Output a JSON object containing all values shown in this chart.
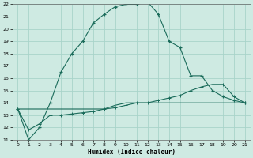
{
  "xlabel": "Humidex (Indice chaleur)",
  "ylabel": "",
  "bg_color": "#ceeae2",
  "grid_color": "#a8d4ca",
  "line_color": "#1a6b5a",
  "xlim": [
    -0.5,
    21.5
  ],
  "ylim": [
    11,
    22
  ],
  "xticks": [
    0,
    1,
    2,
    3,
    4,
    5,
    6,
    7,
    8,
    9,
    10,
    11,
    12,
    13,
    14,
    15,
    16,
    17,
    18,
    19,
    20,
    21
  ],
  "yticks": [
    11,
    12,
    13,
    14,
    15,
    16,
    17,
    18,
    19,
    20,
    21,
    22
  ],
  "line1_x": [
    0,
    1,
    2,
    3,
    4,
    5,
    6,
    7,
    8,
    9,
    10,
    11,
    12,
    13,
    14,
    15,
    16,
    17,
    18,
    19,
    20,
    21
  ],
  "line1_y": [
    13.5,
    11.0,
    12.0,
    14.0,
    16.5,
    18.0,
    19.0,
    20.5,
    21.2,
    21.8,
    22.0,
    22.0,
    22.2,
    21.2,
    19.0,
    18.5,
    16.2,
    16.2,
    15.0,
    14.5,
    14.2,
    14.0
  ],
  "line2_x": [
    0,
    1,
    2,
    3,
    4,
    5,
    6,
    7,
    8,
    9,
    10,
    11,
    12,
    13,
    14,
    15,
    16,
    17,
    18,
    19,
    20,
    21
  ],
  "line2_y": [
    13.5,
    13.5,
    13.5,
    13.5,
    13.5,
    13.5,
    13.5,
    13.5,
    13.5,
    13.8,
    14.0,
    14.0,
    14.0,
    14.0,
    14.0,
    14.0,
    14.0,
    14.0,
    14.0,
    14.0,
    14.0,
    14.0
  ],
  "line3_x": [
    0,
    1,
    2,
    3,
    4,
    5,
    6,
    7,
    8,
    9,
    10,
    11,
    12,
    13,
    14,
    15,
    16,
    17,
    18,
    19,
    20,
    21
  ],
  "line3_y": [
    13.5,
    11.8,
    12.3,
    13.0,
    13.0,
    13.1,
    13.2,
    13.3,
    13.5,
    13.6,
    13.8,
    14.0,
    14.0,
    14.2,
    14.4,
    14.6,
    15.0,
    15.3,
    15.5,
    15.5,
    14.5,
    14.0
  ]
}
